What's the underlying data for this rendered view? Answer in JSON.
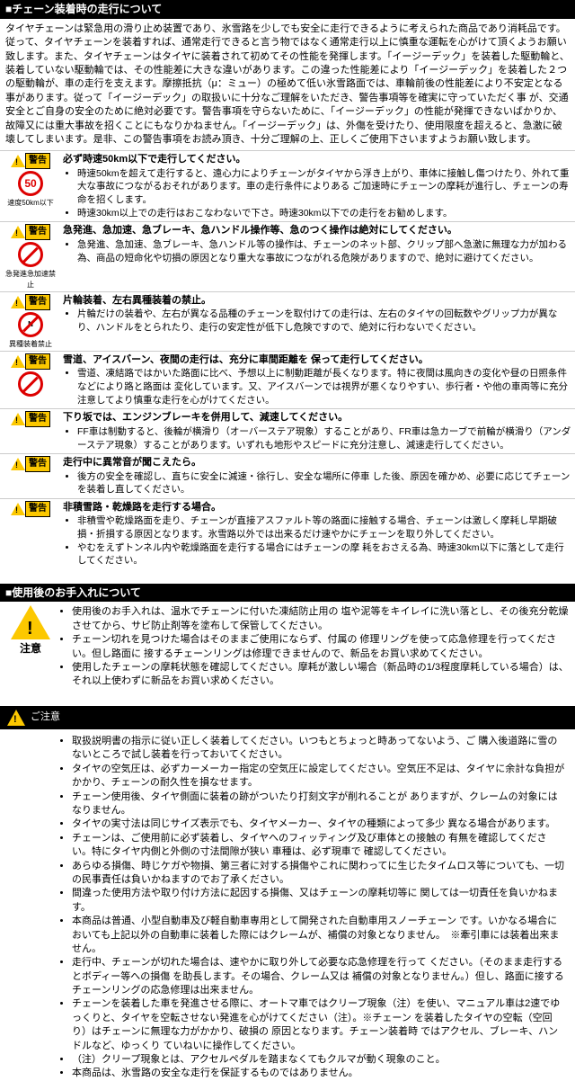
{
  "section1": {
    "header": "■チェーン装着時の走行について",
    "intro": "タイヤチェーンは緊急用の滑り止め装置であり、氷雪路を少しでも安全に走行できるように考えられた商品であり消耗品です。従って、タイヤチェーンを装着すれば、通常走行できると言う物ではなく通常走行以上に慎重な運転を心がけて頂くようお願い致します。また、タイヤチェーンはタイヤに装着されて初めてその性能を発揮します。「イージーデック」を装着した駆動輪と、装着していない駆動輪では、その性能差に大きな違いがあります。この違った性能差により「イージーデック」を装着した２つの駆動輪が、車の走行を支えます。摩擦抵抗（μ：ミュー）の極めて低い氷雪路面では、車輪前後の性能差により不安定となる事があります。従って「イージーデック」の取扱いに十分なご理解をいただき、警告事項等を確実に守っていただく事 が、交通安全とご自身の安全のために絶対必要です。警告事項を守らないために、「イージーデック」の性能が発揮できないばかりか、故障又には重大事故を招くことにもなりかねません。「イージーデック」は、外傷を受けたり、使用限度を超えると、急激に破壊してしまいます。是非、この警告事項をお読み頂き、十分ご理解の上、正しくご使用下さいますようお願い致します。",
    "items": [
      {
        "badge": "警告",
        "iconType": "speed",
        "iconText": "50",
        "caption": "速度50km以下",
        "title": "必ず時速50km以下で走行してください。",
        "bullets": [
          "時速50kmを超えて走行すると、遠心力によりチェーンがタイヤから浮き上がり、車体に接触し傷つけたり、外れて重大な事故につながるおそれがあります。車の走行条件によりある ご加速時にチェーンの摩耗が進行し、チェーンの寿命を招くします。",
          "時速30km以上での走行はおこなわないで下さ。時速30km以下での走行をお勧めします。"
        ]
      },
      {
        "badge": "警告",
        "iconType": "prohibit",
        "caption": "急発進急加速禁止",
        "title": "急発進、急加速、急ブレーキ、急ハンドル操作等、急のつく操作は絶対にしてください。",
        "bullets": [
          "急発進、急加速、急ブレーキ、急ハンドル等の操作は、チェーンのネット部、クリップ部へ急激に無理な力が加わる為、商品の短命化や切損の原因となり重大な事故につながれる危険がありますので、絶対に避けてください。"
        ]
      },
      {
        "badge": "警告",
        "iconType": "prohibit",
        "iconText": "N",
        "caption": "異種装着禁止",
        "title": "片輪装着、左右異種装着の禁止。",
        "bullets": [
          "片輪だけの装着や、左右が異なる品種のチェーンを取付けての走行は、左右のタイヤの回転数やグリップ力が異なり、ハンドルをとられたり、走行の安定性が低下し危険ですので、絶対に行わないでください。"
        ]
      },
      {
        "badge": "警告",
        "iconType": "prohibit",
        "caption": "",
        "title": "雪道、アイスバーン、夜間の走行は、充分に車間距離を 保って走行してください。",
        "bullets": [
          "雪道、凍結路ではかいた路面に比べ、予想以上に制動距離が長くなります。特に夜間は風向きの変化や昼の日照条件などにより路と路面は 変化しています。又、アイスバーンでは視界が悪くなりやすい、歩行者・や他の車両等に充分注意してより慎重な走行を心がけてください。"
        ]
      },
      {
        "badge": "警告",
        "iconType": "none",
        "title": "下り坂では、エンジンブレーキを併用して、減速してください。",
        "bullets": [
          "FF車は制動すると、後輪が横滑り（オーバーステア現象）することがあり、FR車は急カーブで前輪が横滑り（アンダーステア現象）することがあります。いずれも地形やスピードに充分注意し、減速走行してください。"
        ]
      },
      {
        "badge": "警告",
        "iconType": "none",
        "title": "走行中に異常音が聞こえたら。",
        "bullets": [
          "後方の安全を確認し、直ちに安全に減速・徐行し、安全な場所に停車 した後、原因を確かめ、必要に応じてチェーンを装着し直してください。"
        ]
      },
      {
        "badge": "警告",
        "iconType": "none",
        "title": "非積雪路・乾燥路を走行する場合。",
        "bullets": [
          "非積雪や乾燥路面を走り、チェーンが直接アスファルト等の路面に接触する場合、チェーンは激しく摩耗し早期破損・折損する原因となります。氷雪路以外では出来るだけ速やかにチェーンを取り外してください。",
          "やむをえずトンネル内や乾燥路面を走行する場合にはチェーンの摩 耗をおさえる為、時速30km以下に落として走行してください。"
        ]
      }
    ]
  },
  "section2": {
    "header": "■使用後のお手入れについて",
    "label": "注意",
    "bullets": [
      "使用後のお手入れは、温水でチェーンに付いた凍結防止用の 塩や泥等をキイレイに洗い落とし、その後充分乾燥させてから、サビ防止剤等を塗布して保管してください。",
      "チェーン切れを見つけた場合はそのままご使用にならず、付属の 修理リングを使って応急修理を行ってください。但し路面に 接するチェーンリングは修理できませんので、新品をお買い求めてください。",
      "使用したチェーンの摩耗状態を確認してください。摩耗が激しい場合（新品時の1/3程度摩耗している場合）は、それ以上使わずに新品をお買い求めください。"
    ]
  },
  "section3": {
    "header": "ご注意",
    "bullets": [
      "取扱説明書の指示に従い正しく装着してください。いつもとちょっと時あってないよう、ご 購入後道路に雪のないところで試し装着を行っておいてください。",
      "タイヤの空気圧は、必ずカーメーカー指定の空気圧に設定してください。空気圧不足は、タイヤに余計な負担がかかり、チェーンの耐久性を損なせます。",
      "チェーン使用後、タイヤ側面に装着の跡がついたり打刻文字が削れることが ありますが、クレームの対象にはなりません。",
      "タイヤの実寸法は同じサイズ表示でも、タイヤメーカー、タイヤの種類によって多少 異なる場合があります。",
      "チェーンは、ご使用前に必ず装着し、タイヤへのフィッティング及び車体との接触の 有無を確認してください。特にタイヤ内側と外側の寸法間隙が狭い 車種は、必ず現車で 確認してください。",
      "あらゆる損傷、時じケガや物損、第三者に対する損傷やこれに関わってに生じたタイムロス等についても、一切の民事責任は負いかねますのでお了承ください。",
      "間違った使用方法や取り付け方法に起因する損傷、又はチェーンの摩耗切等に 関しては一切責任を負いかねます。",
      "本商品は普通、小型自動車及び軽自動車専用として開発された自動車用スノーチェーン です。いかなる場合においても上記以外の自動車に装着した際にはクレームが、補償の対象となりません。　※牽引車には装着出来ません。",
      "走行中、チェーンが切れた場合は、速やかに取り外して必要な応急修理を行って ください。（そのまま走行するとボディー等への損傷 を助長します。その場合、クレーム又は 補償の対象となりません。）但し、路面に接する チェーンリングの応急修理は出来ません。",
      "チェーンを装着した車を発進させる際に、オートマ車ではクリープ現象（注）を使い、マニュアル車は2速でゆっくりと、タイヤを空転させない発進を心がけてください（注）。※チェーン を装着したタイヤの空転（空回り）はチェーンに無理な力がかかり、破損の 原因となります。チェーン装着時 ではアクセル、ブレーキ、ハンドルなど、ゆっくり  ていねいに操作してください。",
      "（注）クリープ現象とは、アクセルペダルを踏まなくてもクルマが動く現象のこと。",
      "本商品は、氷雪路の安全な走行を保証するものではありません。"
    ]
  }
}
